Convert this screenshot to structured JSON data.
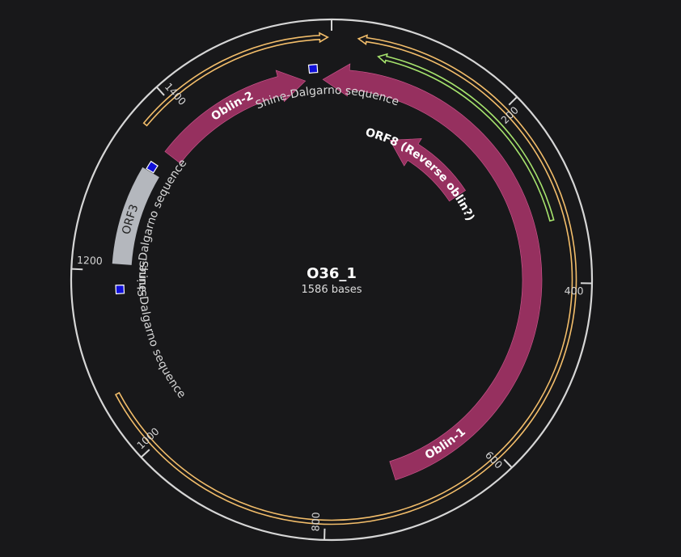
{
  "sequence": {
    "name": "O36_1",
    "length_text": "1586 bases"
  },
  "plasmid": {
    "total_bases": 1586,
    "ticks": [
      {
        "base": 0,
        "label": ""
      },
      {
        "base": 200,
        "label": "200"
      },
      {
        "base": 400,
        "label": "400"
      },
      {
        "base": 600,
        "label": "600"
      },
      {
        "base": 800,
        "label": "800"
      },
      {
        "base": 1000,
        "label": "1000"
      },
      {
        "base": 1200,
        "label": "1200"
      },
      {
        "base": 1400,
        "label": "1400"
      }
    ]
  },
  "colors": {
    "background": "#18181a",
    "backbone": "#d6d6d6",
    "cds": "#96305f",
    "orf3": "#b4b7bd",
    "shine_dalgarno": "#1010d8",
    "orf_outline": "#f2bd6a",
    "orf_green": "#a6e36d",
    "label_light": "#ffffff",
    "label_dark": "#222222",
    "label_outside": "#d8d8d8"
  },
  "features": [
    {
      "id": "oblin-1",
      "label": "Oblin-1",
      "type": "cds",
      "start": 1575,
      "end": 715,
      "direction": "reverse",
      "label_base": 640
    },
    {
      "id": "oblin-2",
      "label": "Oblin-2",
      "type": "cds",
      "start": 1355,
      "end": 1553,
      "direction": "forward",
      "label_base": 1455
    },
    {
      "id": "orf8",
      "label": "ORF8 (Reverse oblin?)",
      "type": "cds",
      "start": 100,
      "end": 248,
      "direction": "reverse",
      "label_base": 176
    },
    {
      "id": "orf3",
      "label": "ORF3",
      "type": "orf3",
      "start": 1208,
      "end": 1325,
      "direction": "none",
      "label_base": 1263
    },
    {
      "id": "sd-1",
      "label": "Shine-Dalgarno sequence",
      "type": "sd",
      "start": 1559,
      "end": 1569,
      "label_base": 1580
    },
    {
      "id": "sd-2",
      "label": "Shine-Dalgarno sequence",
      "type": "sd",
      "start": 1326,
      "end": 1336,
      "label_base": 1264
    },
    {
      "id": "sd-3",
      "label": "Shine-Dalgarno sequence",
      "type": "sd",
      "start": 1173,
      "end": 1183,
      "label_base": 1118
    },
    {
      "id": "orf-outer-top",
      "label": "",
      "type": "orf",
      "start": 1365,
      "end": 1582,
      "direction": "forward"
    },
    {
      "id": "orf-outer-right",
      "label": "",
      "type": "orf",
      "start": 28,
      "end": 1066,
      "direction": "reverse"
    },
    {
      "id": "orf-green",
      "label": "",
      "type": "orf_green",
      "start": 52,
      "end": 330,
      "direction": "reverse"
    }
  ]
}
